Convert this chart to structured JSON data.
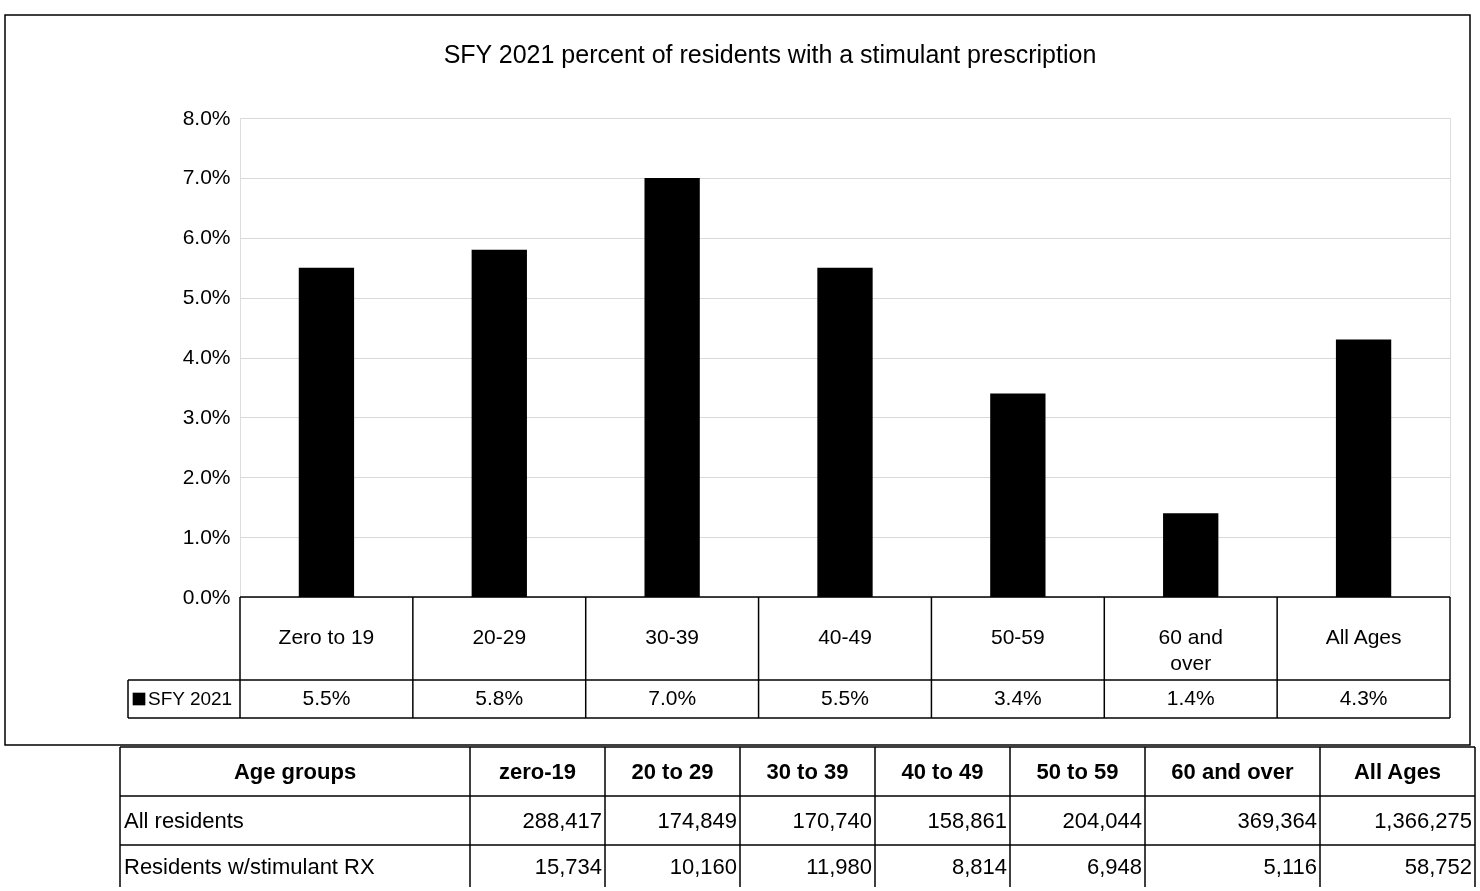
{
  "chart_data": {
    "type": "bar",
    "title": "SFY 2021  percent  of residents  with a stimulant  prescription",
    "categories": [
      "Zero to 19",
      "20-29",
      "30-39",
      "40-49",
      "50-59",
      "60 and over",
      "All Ages"
    ],
    "series": [
      {
        "name": "SFY 2021",
        "color": "#000000",
        "values": [
          5.5,
          5.8,
          7.0,
          5.5,
          3.4,
          1.4,
          4.3
        ],
        "value_labels": [
          "5.5%",
          "5.8%",
          "7.0%",
          "5.5%",
          "3.4%",
          "1.4%",
          "4.3%"
        ]
      }
    ],
    "ylim": [
      0,
      8
    ],
    "yticks": [
      {
        "value": 0,
        "label": "0.0%"
      },
      {
        "value": 1,
        "label": "1.0%"
      },
      {
        "value": 2,
        "label": "2.0%"
      },
      {
        "value": 3,
        "label": "3.0%"
      },
      {
        "value": 4,
        "label": "4.0%"
      },
      {
        "value": 5,
        "label": "5.0%"
      },
      {
        "value": 6,
        "label": "6.0%"
      },
      {
        "value": 7,
        "label": "7.0%"
      },
      {
        "value": 8,
        "label": "8.0%"
      }
    ],
    "grid": "y",
    "legend": "bottom",
    "annotations": [
      "Age groups",
      "zero-19",
      "20 to 29",
      "30 to 39",
      "40 to 49",
      "50 to 59",
      "60 and over",
      "All Ages",
      "All residents",
      "288,417",
      "174,849",
      "170,740",
      "158,861",
      "204,044",
      "369,364",
      "1,366,275",
      "Residents w/stimulant RX",
      "15,734",
      "10,160",
      "11,980",
      "8,814",
      "6,948",
      "5,116",
      "58,752"
    ]
  }
}
